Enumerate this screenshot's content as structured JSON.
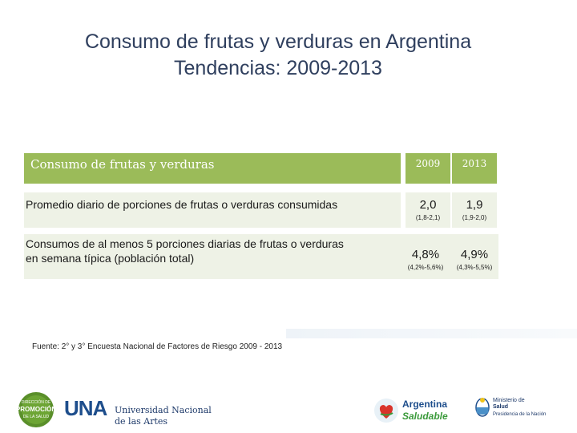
{
  "title_line1": "Consumo de frutas y verduras en Argentina",
  "title_line2": "Tendencias: 2009-2013",
  "table": {
    "header_label": "Consumo de frutas y verduras",
    "year1": "2009",
    "year2": "2013",
    "rows": [
      {
        "label": "Promedio diario de porciones de frutas o verduras consumidas",
        "v1": "2,0",
        "ci1": "(1,8-2,1)",
        "v2": "1,9",
        "ci2": "(1,9-2,0)"
      },
      {
        "label_line1": "Consumos de al menos 5 porciones diarias de frutas o verduras",
        "label_line2": "en semana típica (población total)",
        "v1": "4,8%",
        "ci1": "(4,2%-5,6%)",
        "v2": "4,9%",
        "ci2": "(4,3%-5,5%)"
      }
    ]
  },
  "source": "Fuente: 2° y 3° Encuesta Nacional de Factores de Riesgo 2009 - 2013",
  "logos": {
    "promo_l1": "DIRECCIÓN DE",
    "promo_l2": "PROMOCIÓN",
    "promo_l3": "DE LA SALUD",
    "una_mark": "UNA",
    "una_l1": "Universidad Nacional",
    "una_l2": "de las Artes",
    "arg_l1": "Argentina",
    "arg_l2": "Saludable",
    "min_l1": "Ministerio de",
    "min_l2": "Salud",
    "min_l3": "Presidencia de la Nación"
  },
  "colors": {
    "header_green": "#9bbb59",
    "row_bg": "#eef2e6",
    "title": "#2f3f5e"
  }
}
